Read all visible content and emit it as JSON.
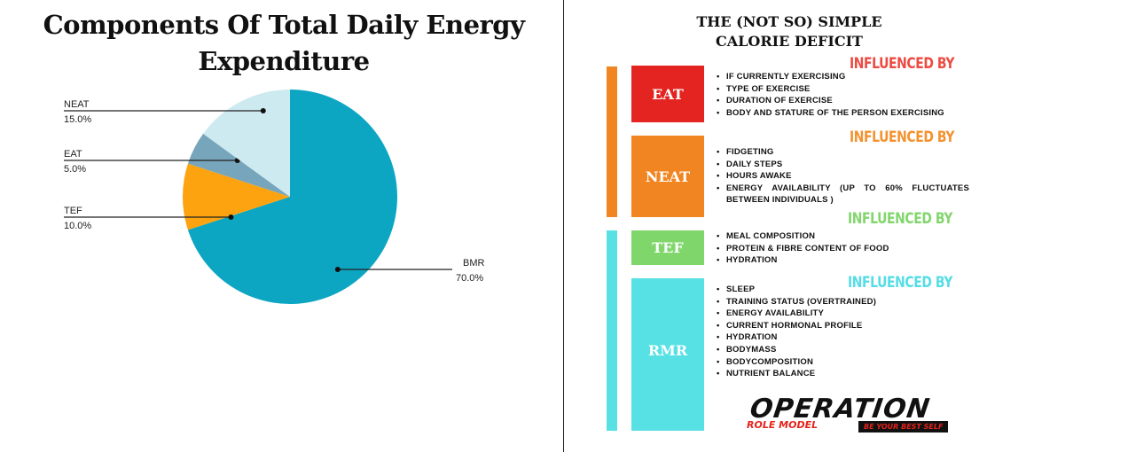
{
  "chart_data": {
    "type": "pie",
    "title": "Components Of Total Daily Energy Expenditure",
    "slices": [
      {
        "name": "BMR",
        "value": 70.0,
        "label": "70.0%",
        "color": "#0ca6c3"
      },
      {
        "name": "TEF",
        "value": 10.0,
        "label": "10.0%",
        "color": "#fca30f"
      },
      {
        "name": "EAT",
        "value": 5.0,
        "label": "5.0%",
        "color": "#77a5bb"
      },
      {
        "name": "NEAT",
        "value": 15.0,
        "label": "15.0%",
        "color": "#cdeaf1"
      }
    ]
  },
  "infographic": {
    "title_line1": "THE (NOT SO) SIMPLE",
    "title_line2": "CALORIE DEFICIT",
    "sections": [
      {
        "label": "EAT",
        "color": "#e42420",
        "heading": "INFLUENCED BY",
        "heading_color": "#ec4b42",
        "items": [
          "IF CURRENTLY EXERCISING",
          "TYPE OF EXERCISE",
          "DURATION OF EXERCISE",
          "BODY AND STATURE OF THE PERSON EXERCISING"
        ]
      },
      {
        "label": "NEAT",
        "color": "#f18521",
        "heading": "INFLUENCED BY",
        "heading_color": "#f3922f",
        "items": [
          "FIDGETING",
          "DAILY STEPS",
          "HOURS AWAKE",
          "ENERGY AVAILABILITY (UP TO 60% FLUCTUATES BETWEEN INDIVIDUALS )"
        ]
      },
      {
        "label": "TEF",
        "color": "#7fd66a",
        "heading": "INFLUENCED BY",
        "heading_color": "#82d66c",
        "items": [
          "MEAL COMPOSITION",
          "PROTEIN & FIBRE CONTENT OF FOOD",
          "HYDRATION"
        ]
      },
      {
        "label": "RMR",
        "color": "#57e1e4",
        "heading": "INFLUENCED BY",
        "heading_color": "#55dde6",
        "items": [
          "SLEEP",
          "TRAINING STATUS (OVERTRAINED)",
          "ENERGY AVAILABILITY",
          "CURRENT HORMONAL PROFILE",
          "HYDRATION",
          "BODYMASS",
          "BODYCOMPOSITION",
          "NUTRIENT BALANCE"
        ]
      }
    ],
    "side_bars": [
      "#f18521",
      "#57e1e4"
    ]
  },
  "logo": {
    "main": "OPERATION",
    "sub1": "ROLE MODEL",
    "sub2": "BE YOUR BEST SELF"
  }
}
